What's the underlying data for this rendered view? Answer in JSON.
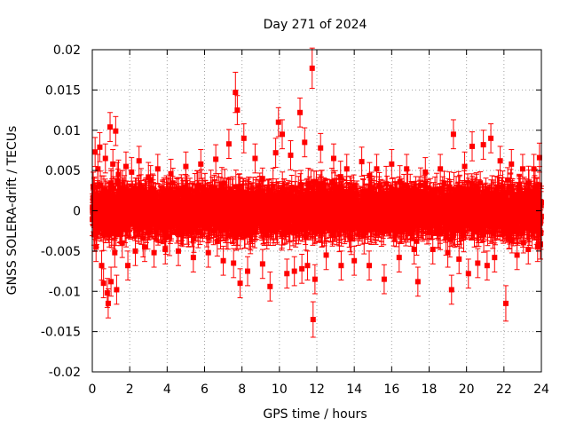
{
  "chart_data": {
    "type": "scatter",
    "title": "Day 271 of 2024",
    "xlabel": "GPS time / hours",
    "ylabel": "GNSS SOLERA-drift / TECUs",
    "xlim": [
      0,
      24
    ],
    "ylim": [
      -0.02,
      0.02
    ],
    "x_ticks": [
      0,
      2,
      4,
      6,
      8,
      10,
      12,
      14,
      16,
      18,
      20,
      22,
      24
    ],
    "x_tick_labels": [
      "0",
      "2",
      "4",
      "6",
      "8",
      "10",
      "12",
      "14",
      "16",
      "18",
      "20",
      "22",
      "24"
    ],
    "y_ticks": [
      0.02,
      0.015,
      0.01,
      0.005,
      0,
      -0.005,
      -0.01,
      -0.015,
      -0.02
    ],
    "y_tick_labels": [
      "0.02",
      "0.015",
      "0.01",
      "0.005",
      "0",
      "-0.005",
      "-0.01",
      "-0.015",
      "-0.02"
    ],
    "grid": true,
    "marker": "square",
    "error_bars": true,
    "series_color": "#ff0000",
    "grid_color": "#a0a0a0",
    "points": [
      {
        "x": 0.05,
        "y": 0.003,
        "err": 0.0018
      },
      {
        "x": 0.1,
        "y": -0.0003,
        "err": 0.0018
      },
      {
        "x": 0.15,
        "y": 0.0073,
        "err": 0.0018
      },
      {
        "x": 0.2,
        "y": -0.0045,
        "err": 0.0018
      },
      {
        "x": 0.3,
        "y": 0.0052,
        "err": 0.0018
      },
      {
        "x": 0.4,
        "y": 0.0079,
        "err": 0.0018
      },
      {
        "x": 0.5,
        "y": -0.0068,
        "err": 0.0018
      },
      {
        "x": 0.6,
        "y": -0.009,
        "err": 0.0018
      },
      {
        "x": 0.7,
        "y": 0.0065,
        "err": 0.0018
      },
      {
        "x": 0.8,
        "y": -0.0102,
        "err": 0.0018
      },
      {
        "x": 0.85,
        "y": -0.0115,
        "err": 0.0018
      },
      {
        "x": 0.95,
        "y": 0.0104,
        "err": 0.0018
      },
      {
        "x": 1.0,
        "y": -0.0088,
        "err": 0.0018
      },
      {
        "x": 1.1,
        "y": 0.0058,
        "err": 0.0018
      },
      {
        "x": 1.2,
        "y": -0.0052,
        "err": 0.0018
      },
      {
        "x": 1.25,
        "y": 0.0099,
        "err": 0.0018
      },
      {
        "x": 1.3,
        "y": -0.0098,
        "err": 0.0018
      },
      {
        "x": 1.4,
        "y": 0.0045,
        "err": 0.0018
      },
      {
        "x": 1.6,
        "y": -0.004,
        "err": 0.0018
      },
      {
        "x": 1.8,
        "y": 0.0055,
        "err": 0.0018
      },
      {
        "x": 1.9,
        "y": -0.0068,
        "err": 0.0018
      },
      {
        "x": 2.1,
        "y": 0.0048,
        "err": 0.0018
      },
      {
        "x": 2.3,
        "y": -0.005,
        "err": 0.0018
      },
      {
        "x": 2.5,
        "y": 0.0062,
        "err": 0.0018
      },
      {
        "x": 2.8,
        "y": -0.0045,
        "err": 0.0018
      },
      {
        "x": 3.0,
        "y": 0.0042,
        "err": 0.0018
      },
      {
        "x": 3.3,
        "y": -0.0052,
        "err": 0.0018
      },
      {
        "x": 3.5,
        "y": 0.0052,
        "err": 0.0018
      },
      {
        "x": 3.9,
        "y": -0.0048,
        "err": 0.0018
      },
      {
        "x": 4.2,
        "y": 0.0046,
        "err": 0.0018
      },
      {
        "x": 4.6,
        "y": -0.005,
        "err": 0.0018
      },
      {
        "x": 5.0,
        "y": 0.0055,
        "err": 0.0018
      },
      {
        "x": 5.4,
        "y": -0.0058,
        "err": 0.0018
      },
      {
        "x": 5.8,
        "y": 0.0058,
        "err": 0.0018
      },
      {
        "x": 6.2,
        "y": -0.0052,
        "err": 0.0018
      },
      {
        "x": 6.6,
        "y": 0.0064,
        "err": 0.0018
      },
      {
        "x": 7.0,
        "y": -0.0062,
        "err": 0.0018
      },
      {
        "x": 7.3,
        "y": 0.0083,
        "err": 0.0018
      },
      {
        "x": 7.55,
        "y": -0.0065,
        "err": 0.0018
      },
      {
        "x": 7.65,
        "y": 0.0147,
        "err": 0.0025
      },
      {
        "x": 7.75,
        "y": 0.0125,
        "err": 0.0018
      },
      {
        "x": 7.9,
        "y": -0.009,
        "err": 0.0018
      },
      {
        "x": 8.1,
        "y": 0.009,
        "err": 0.0018
      },
      {
        "x": 8.3,
        "y": -0.0075,
        "err": 0.0018
      },
      {
        "x": 8.7,
        "y": 0.0065,
        "err": 0.0018
      },
      {
        "x": 9.1,
        "y": -0.0066,
        "err": 0.0018
      },
      {
        "x": 9.5,
        "y": -0.0094,
        "err": 0.0018
      },
      {
        "x": 9.8,
        "y": 0.0072,
        "err": 0.0018
      },
      {
        "x": 9.95,
        "y": 0.011,
        "err": 0.0018
      },
      {
        "x": 10.15,
        "y": 0.0095,
        "err": 0.0018
      },
      {
        "x": 10.4,
        "y": -0.0078,
        "err": 0.0018
      },
      {
        "x": 10.6,
        "y": 0.0069,
        "err": 0.0018
      },
      {
        "x": 10.8,
        "y": -0.0075,
        "err": 0.0018
      },
      {
        "x": 11.1,
        "y": 0.0122,
        "err": 0.0018
      },
      {
        "x": 11.2,
        "y": -0.0072,
        "err": 0.0018
      },
      {
        "x": 11.35,
        "y": 0.0085,
        "err": 0.0018
      },
      {
        "x": 11.5,
        "y": -0.0068,
        "err": 0.0018
      },
      {
        "x": 11.75,
        "y": 0.0177,
        "err": 0.0025
      },
      {
        "x": 11.8,
        "y": -0.0135,
        "err": 0.0022
      },
      {
        "x": 11.9,
        "y": -0.0085,
        "err": 0.0018
      },
      {
        "x": 12.2,
        "y": 0.0078,
        "err": 0.0018
      },
      {
        "x": 12.5,
        "y": -0.0055,
        "err": 0.0018
      },
      {
        "x": 12.9,
        "y": 0.0065,
        "err": 0.0018
      },
      {
        "x": 13.3,
        "y": -0.0068,
        "err": 0.0018
      },
      {
        "x": 13.6,
        "y": 0.0052,
        "err": 0.0018
      },
      {
        "x": 14.0,
        "y": -0.0062,
        "err": 0.0018
      },
      {
        "x": 14.4,
        "y": 0.0061,
        "err": 0.0018
      },
      {
        "x": 14.8,
        "y": -0.0068,
        "err": 0.0018
      },
      {
        "x": 15.2,
        "y": 0.0052,
        "err": 0.0018
      },
      {
        "x": 15.6,
        "y": -0.0085,
        "err": 0.0018
      },
      {
        "x": 16.0,
        "y": 0.0058,
        "err": 0.0018
      },
      {
        "x": 16.4,
        "y": -0.0058,
        "err": 0.0018
      },
      {
        "x": 16.8,
        "y": 0.0052,
        "err": 0.0018
      },
      {
        "x": 17.2,
        "y": -0.0048,
        "err": 0.0018
      },
      {
        "x": 17.4,
        "y": -0.0088,
        "err": 0.0018
      },
      {
        "x": 17.8,
        "y": 0.0048,
        "err": 0.0018
      },
      {
        "x": 18.2,
        "y": -0.0048,
        "err": 0.0018
      },
      {
        "x": 18.6,
        "y": 0.0052,
        "err": 0.0018
      },
      {
        "x": 19.0,
        "y": -0.0052,
        "err": 0.0018
      },
      {
        "x": 19.2,
        "y": -0.0098,
        "err": 0.0018
      },
      {
        "x": 19.3,
        "y": 0.0095,
        "err": 0.0018
      },
      {
        "x": 19.6,
        "y": -0.006,
        "err": 0.0018
      },
      {
        "x": 19.9,
        "y": 0.0055,
        "err": 0.0018
      },
      {
        "x": 20.1,
        "y": -0.0078,
        "err": 0.0018
      },
      {
        "x": 20.3,
        "y": 0.008,
        "err": 0.0018
      },
      {
        "x": 20.6,
        "y": -0.0065,
        "err": 0.0018
      },
      {
        "x": 20.9,
        "y": 0.0082,
        "err": 0.0018
      },
      {
        "x": 21.1,
        "y": -0.0068,
        "err": 0.0018
      },
      {
        "x": 21.3,
        "y": 0.009,
        "err": 0.0018
      },
      {
        "x": 21.5,
        "y": -0.0058,
        "err": 0.0018
      },
      {
        "x": 21.8,
        "y": 0.0062,
        "err": 0.0018
      },
      {
        "x": 22.1,
        "y": -0.0115,
        "err": 0.0022
      },
      {
        "x": 22.4,
        "y": 0.0058,
        "err": 0.0018
      },
      {
        "x": 22.7,
        "y": -0.0055,
        "err": 0.0018
      },
      {
        "x": 23.0,
        "y": 0.0052,
        "err": 0.0018
      },
      {
        "x": 23.3,
        "y": -0.0048,
        "err": 0.0018
      },
      {
        "x": 23.6,
        "y": 0.0052,
        "err": 0.0018
      },
      {
        "x": 23.8,
        "y": -0.0045,
        "err": 0.0018
      },
      {
        "x": 23.9,
        "y": 0.0066,
        "err": 0.0018
      },
      {
        "x": 23.95,
        "y": -0.0042,
        "err": 0.0018
      }
    ],
    "dense_band": {
      "x_range": [
        0,
        24
      ],
      "center": 0,
      "spread": 0.0022,
      "err": 0.0018,
      "points_per_hour": 140
    }
  }
}
